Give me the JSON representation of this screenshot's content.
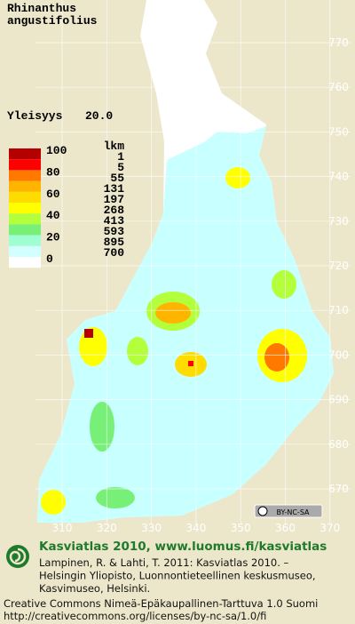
{
  "title": [
    "Rhinanthus",
    "angustifolius"
  ],
  "frequency": {
    "label": "Yleisyys",
    "value": "20.0"
  },
  "legend": {
    "levels": [
      {
        "label": "100",
        "colors": [
          "#b40000",
          "#ff0000"
        ]
      },
      {
        "label": "80",
        "colors": [
          "#ff7800",
          "#ffb400"
        ]
      },
      {
        "label": "60",
        "colors": [
          "#ffdc00",
          "#ffff00"
        ]
      },
      {
        "label": "40",
        "colors": [
          "#b4ff3c",
          "#78f078"
        ]
      },
      {
        "label": "20",
        "colors": [
          "#a0ffd2",
          "#d2ffff"
        ]
      },
      {
        "label": "0",
        "colors": [
          "#ffffff"
        ]
      }
    ]
  },
  "count_header": "lkm",
  "counts": [
    "1",
    "5",
    "55",
    "131",
    "197",
    "268",
    "413",
    "593",
    "895",
    "700"
  ],
  "grid": {
    "northing": [
      "770",
      "760",
      "750",
      "740",
      "730",
      "720",
      "710",
      "700",
      "690",
      "680",
      "670"
    ],
    "easting": [
      "310",
      "320",
      "330",
      "340",
      "350",
      "360",
      "370"
    ]
  },
  "license_badge": "BY-NC-SA",
  "footer": {
    "heading": "Kasviatlas 2010, www.luomus.fi/kasviatlas",
    "citation": [
      "Lampinen, R. & Lahti, T. 2011: Kasviatlas 2010. –",
      "Helsingin Yliopisto, Luonnontieteellinen keskusmuseo,",
      "Kasvimuseo, Helsinki."
    ],
    "license": [
      "Creative Commons Nimeä-Epäkaupallinen-Tarttuva 1.0 Suomi",
      "http://creativecommons.org/licenses/by-nc-sa/1.0/fi"
    ]
  }
}
